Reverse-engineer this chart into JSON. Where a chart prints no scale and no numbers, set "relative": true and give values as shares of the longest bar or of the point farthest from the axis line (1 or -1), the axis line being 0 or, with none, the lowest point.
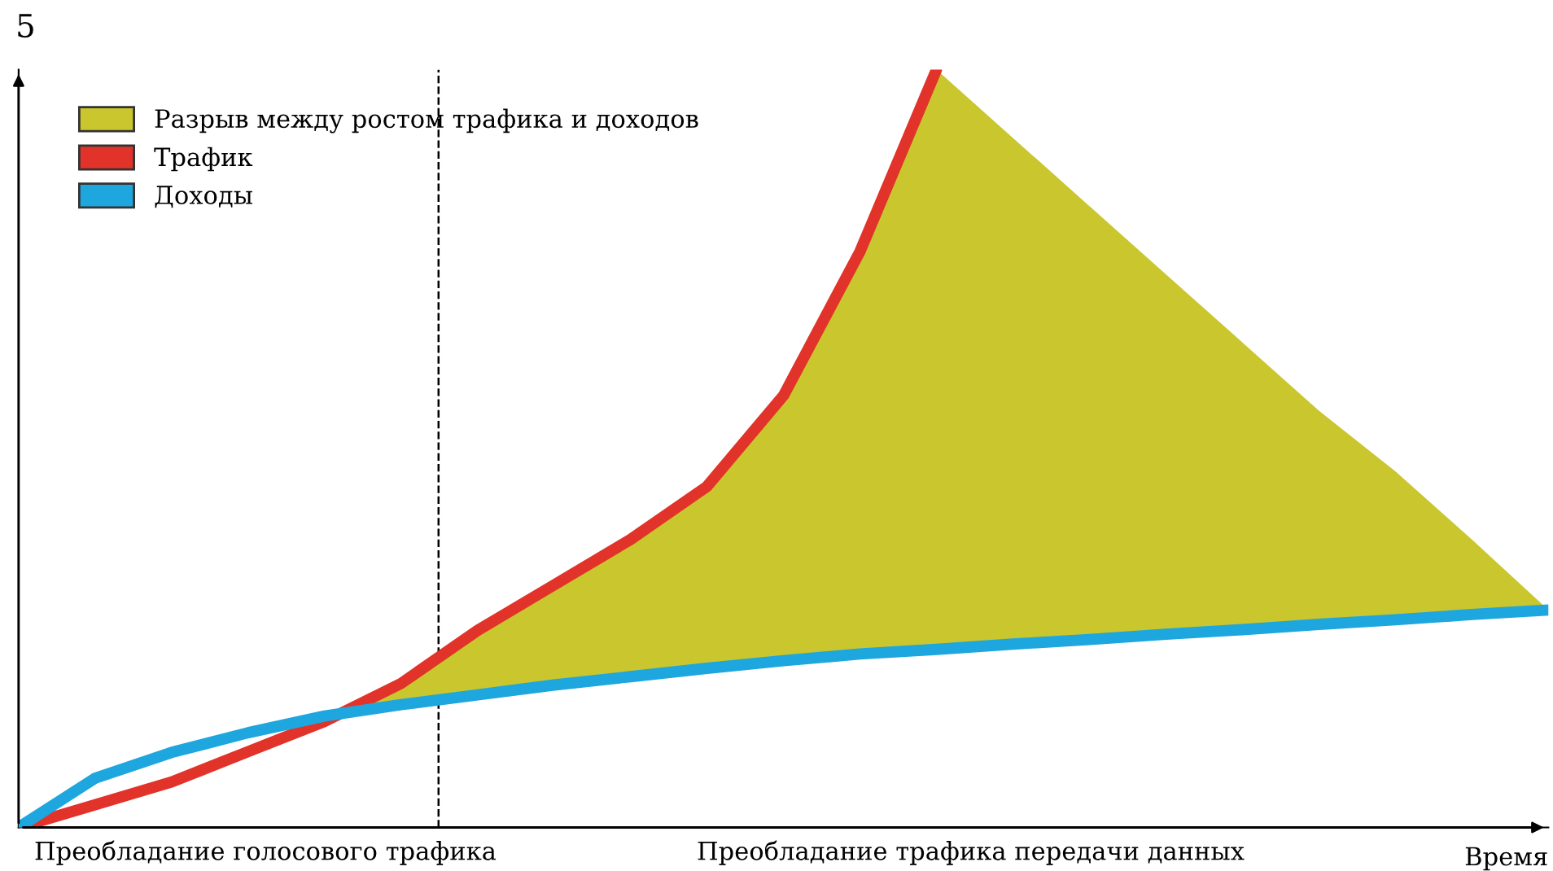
{
  "chart_data": {
    "type": "line",
    "relative": true,
    "xlabel": "Время",
    "categories": [
      null,
      null,
      null,
      null,
      null,
      null,
      null,
      null,
      null,
      null,
      null,
      null,
      null,
      null,
      null,
      null,
      null,
      null,
      null,
      null,
      null
    ],
    "series": [
      {
        "name": "Разрыв между ростом трафика и доходов",
        "type": "area",
        "color": "#c9c62e",
        "values": [
          null,
          null,
          null,
          null,
          0.147,
          0.19,
          0.26,
          0.32,
          0.38,
          0.45,
          0.57,
          0.76,
          1.0,
          0.91,
          0.82,
          0.73,
          0.64,
          0.55,
          0.47,
          0.38,
          0.287
        ]
      },
      {
        "name": "Трафик",
        "color": "#e2332a",
        "values": [
          0,
          0.03,
          0.06,
          0.1,
          0.14,
          0.19,
          0.26,
          0.32,
          0.38,
          0.45,
          0.57,
          0.76,
          1.0,
          null,
          null,
          null,
          null,
          null,
          null,
          null,
          null
        ]
      },
      {
        "name": "Доходы",
        "color": "#1ea6de",
        "values": [
          0,
          0.065,
          0.099,
          0.125,
          0.147,
          0.162,
          0.175,
          0.188,
          0.199,
          0.21,
          0.22,
          0.229,
          0.235,
          0.242,
          0.248,
          0.255,
          0.261,
          0.268,
          0.274,
          0.281,
          0.287
        ]
      }
    ],
    "annotations": [
      "5",
      "Преобладание голосового трафика",
      "Преобладание трафика передачи данных"
    ],
    "legend": "top left",
    "tick_labels": false,
    "line_style": "solid",
    "marker": "none"
  }
}
